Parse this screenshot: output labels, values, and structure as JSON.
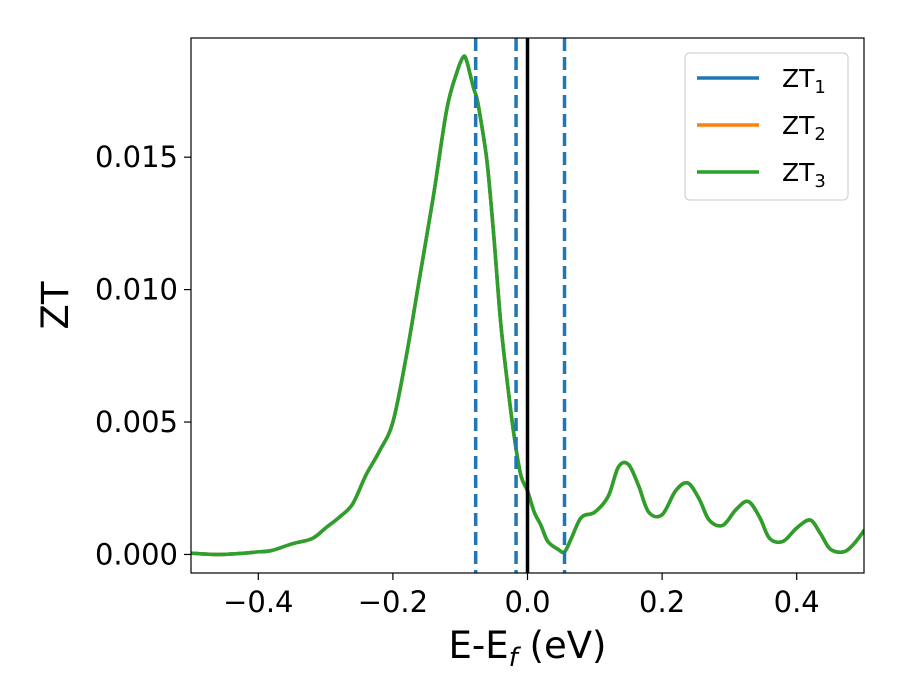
{
  "chart_data": {
    "type": "line",
    "title": "",
    "xlabel": {
      "main": "E-E",
      "sub": "f",
      "tail": " (eV)"
    },
    "ylabel": "ZT",
    "xlim": [
      -0.5,
      0.5
    ],
    "ylim": [
      -0.0007,
      0.0195
    ],
    "x_ticks": [
      -0.4,
      -0.2,
      0.0,
      0.2,
      0.4
    ],
    "x_tick_labels": [
      "−0.4",
      "−0.2",
      "0.0",
      "0.2",
      "0.4"
    ],
    "y_ticks": [
      0.0,
      0.005,
      0.01,
      0.015
    ],
    "y_tick_labels": [
      "0.000",
      "0.005",
      "0.010",
      "0.015"
    ],
    "grid": false,
    "legend_position": "top-right",
    "series": [
      {
        "name": "ZT",
        "sub": "1",
        "color": "#1f77b4",
        "x": [
          -0.5,
          -0.46,
          -0.42,
          -0.4,
          -0.38,
          -0.35,
          -0.32,
          -0.3,
          -0.28,
          -0.26,
          -0.24,
          -0.22,
          -0.2,
          -0.18,
          -0.16,
          -0.14,
          -0.12,
          -0.105,
          -0.095,
          -0.09,
          -0.085,
          -0.08,
          -0.075,
          -0.07,
          -0.06,
          -0.05,
          -0.04,
          -0.03,
          -0.02,
          -0.01,
          0.0,
          0.01,
          0.02,
          0.03,
          0.045,
          0.055,
          0.065,
          0.08,
          0.1,
          0.12,
          0.135,
          0.15,
          0.165,
          0.18,
          0.2,
          0.22,
          0.238,
          0.255,
          0.27,
          0.29,
          0.31,
          0.328,
          0.345,
          0.36,
          0.38,
          0.4,
          0.42,
          0.435,
          0.45,
          0.47,
          0.485,
          0.5
        ],
        "y": [
          5e-05,
          0.0,
          5e-05,
          0.0001,
          0.00015,
          0.0004,
          0.0006,
          0.001,
          0.0014,
          0.0019,
          0.003,
          0.0039,
          0.005,
          0.0075,
          0.0105,
          0.0135,
          0.0168,
          0.0182,
          0.0188,
          0.0186,
          0.0181,
          0.0176,
          0.0172,
          0.0165,
          0.0148,
          0.012,
          0.0088,
          0.0065,
          0.0045,
          0.003,
          0.0024,
          0.0016,
          0.0011,
          0.0005,
          0.0002,
          0.0001,
          0.0006,
          0.0014,
          0.0016,
          0.0022,
          0.0033,
          0.0034,
          0.0026,
          0.0016,
          0.0015,
          0.0024,
          0.0027,
          0.0021,
          0.0013,
          0.0011,
          0.0017,
          0.002,
          0.0014,
          0.0006,
          0.0005,
          0.001,
          0.0013,
          0.0008,
          0.0002,
          0.0001,
          0.0004,
          0.0009
        ]
      },
      {
        "name": "ZT",
        "sub": "2",
        "color": "#ff7f0e",
        "x": [
          -0.5,
          -0.46,
          -0.42,
          -0.4,
          -0.38,
          -0.35,
          -0.32,
          -0.3,
          -0.28,
          -0.26,
          -0.24,
          -0.22,
          -0.2,
          -0.18,
          -0.16,
          -0.14,
          -0.12,
          -0.105,
          -0.095,
          -0.09,
          -0.085,
          -0.08,
          -0.075,
          -0.07,
          -0.06,
          -0.05,
          -0.04,
          -0.03,
          -0.02,
          -0.01,
          0.0,
          0.01,
          0.02,
          0.03,
          0.045,
          0.055,
          0.065,
          0.08,
          0.1,
          0.12,
          0.135,
          0.15,
          0.165,
          0.18,
          0.2,
          0.22,
          0.238,
          0.255,
          0.27,
          0.29,
          0.31,
          0.328,
          0.345,
          0.36,
          0.38,
          0.4,
          0.42,
          0.435,
          0.45,
          0.47,
          0.485,
          0.5
        ],
        "y": [
          5e-05,
          0.0,
          5e-05,
          0.0001,
          0.00015,
          0.0004,
          0.0006,
          0.001,
          0.0014,
          0.0019,
          0.003,
          0.0039,
          0.005,
          0.0075,
          0.0105,
          0.0135,
          0.0168,
          0.0182,
          0.0188,
          0.0186,
          0.0181,
          0.0176,
          0.0172,
          0.0165,
          0.0148,
          0.012,
          0.0088,
          0.0065,
          0.0045,
          0.003,
          0.0024,
          0.0016,
          0.0011,
          0.0005,
          0.0002,
          0.0001,
          0.0006,
          0.0014,
          0.0016,
          0.0022,
          0.0033,
          0.0034,
          0.0026,
          0.0016,
          0.0015,
          0.0024,
          0.0027,
          0.0021,
          0.0013,
          0.0011,
          0.0017,
          0.002,
          0.0014,
          0.0006,
          0.0005,
          0.001,
          0.0013,
          0.0008,
          0.0002,
          0.0001,
          0.0004,
          0.0009
        ]
      },
      {
        "name": "ZT",
        "sub": "3",
        "color": "#2ca02c",
        "x": [
          -0.5,
          -0.46,
          -0.42,
          -0.4,
          -0.38,
          -0.35,
          -0.32,
          -0.3,
          -0.28,
          -0.26,
          -0.24,
          -0.22,
          -0.2,
          -0.18,
          -0.16,
          -0.14,
          -0.12,
          -0.105,
          -0.095,
          -0.09,
          -0.085,
          -0.08,
          -0.075,
          -0.07,
          -0.06,
          -0.05,
          -0.04,
          -0.03,
          -0.02,
          -0.01,
          0.0,
          0.01,
          0.02,
          0.03,
          0.045,
          0.055,
          0.065,
          0.08,
          0.1,
          0.12,
          0.135,
          0.15,
          0.165,
          0.18,
          0.2,
          0.22,
          0.238,
          0.255,
          0.27,
          0.29,
          0.31,
          0.328,
          0.345,
          0.36,
          0.38,
          0.4,
          0.42,
          0.435,
          0.45,
          0.47,
          0.485,
          0.5
        ],
        "y": [
          5e-05,
          0.0,
          5e-05,
          0.0001,
          0.00015,
          0.0004,
          0.0006,
          0.001,
          0.0014,
          0.0019,
          0.003,
          0.0039,
          0.005,
          0.0075,
          0.0105,
          0.0135,
          0.0168,
          0.0182,
          0.0188,
          0.0186,
          0.0181,
          0.0176,
          0.0172,
          0.0165,
          0.0148,
          0.012,
          0.0088,
          0.0065,
          0.0045,
          0.003,
          0.0024,
          0.0016,
          0.0011,
          0.0005,
          0.0002,
          0.0001,
          0.0006,
          0.0014,
          0.0016,
          0.0022,
          0.0033,
          0.0034,
          0.0026,
          0.0016,
          0.0015,
          0.0024,
          0.0027,
          0.0021,
          0.0013,
          0.0011,
          0.0017,
          0.002,
          0.0014,
          0.0006,
          0.0005,
          0.001,
          0.0013,
          0.0008,
          0.0002,
          0.0001,
          0.0004,
          0.0009
        ]
      }
    ],
    "vlines": [
      {
        "x": -0.077,
        "style": "dashed",
        "color": "#1f77b4"
      },
      {
        "x": -0.017,
        "style": "dashed",
        "color": "#1f77b4"
      },
      {
        "x": 0.055,
        "style": "dashed",
        "color": "#1f77b4"
      },
      {
        "x": 0.0,
        "style": "solid",
        "color": "#000000"
      }
    ]
  }
}
